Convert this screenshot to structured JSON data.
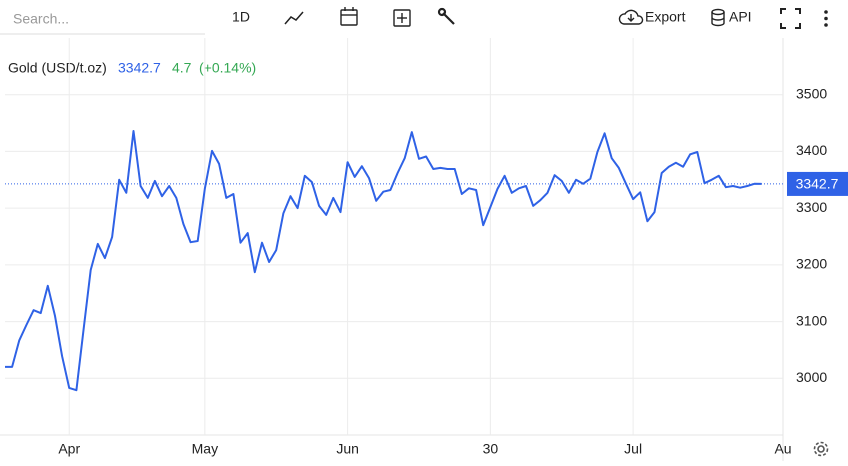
{
  "toolbar": {
    "search_placeholder": "Search...",
    "interval": "1D",
    "export": "Export",
    "api": "API"
  },
  "chart_data": {
    "type": "line",
    "series": [
      {
        "name": "Gold (USD/t.oz)",
        "color": "#2f62e6",
        "values": [
          3020,
          3020,
          3067,
          3094,
          3120,
          3115,
          3163,
          3110,
          3039,
          2983,
          2979,
          3085,
          3191,
          3237,
          3212,
          3249,
          3350,
          3327,
          3436,
          3339,
          3318,
          3348,
          3321,
          3339,
          3318,
          3272,
          3240,
          3242,
          3335,
          3401,
          3378,
          3318,
          3325,
          3239,
          3256,
          3187,
          3239,
          3205,
          3226,
          3291,
          3321,
          3300,
          3357,
          3346,
          3304,
          3288,
          3318,
          3293,
          3381,
          3355,
          3374,
          3353,
          3313,
          3329,
          3332,
          3362,
          3388,
          3434,
          3387,
          3391,
          3369,
          3371,
          3369,
          3369,
          3325,
          3335,
          3332,
          3270,
          3302,
          3334,
          3357,
          3327,
          3335,
          3339,
          3304,
          3314,
          3327,
          3358,
          3348,
          3327,
          3350,
          3343,
          3352,
          3399,
          3432,
          3388,
          3371,
          3343,
          3316,
          3328,
          3277,
          3293,
          3362,
          3373,
          3380,
          3373,
          3395,
          3399,
          3344,
          3350,
          3357,
          3337,
          3339,
          3336,
          3339,
          3343,
          3342.7
        ]
      }
    ],
    "last_price": 3342.7,
    "change": 4.7,
    "change_percent_label": "(+0.14%)",
    "change_color": "#34a853",
    "xlim": [
      0,
      109
    ],
    "xticks": [
      {
        "value": 9,
        "label": "Apr"
      },
      {
        "value": 28,
        "label": "May"
      },
      {
        "value": 48,
        "label": "Jun"
      },
      {
        "value": 68,
        "label": "30"
      },
      {
        "value": 88,
        "label": "Jul"
      },
      {
        "value": 109,
        "label": "Au"
      }
    ],
    "ylim": [
      2900,
      3600
    ],
    "yticks": [
      3000,
      3100,
      3200,
      3300,
      3400,
      3500
    ],
    "grid": true
  }
}
